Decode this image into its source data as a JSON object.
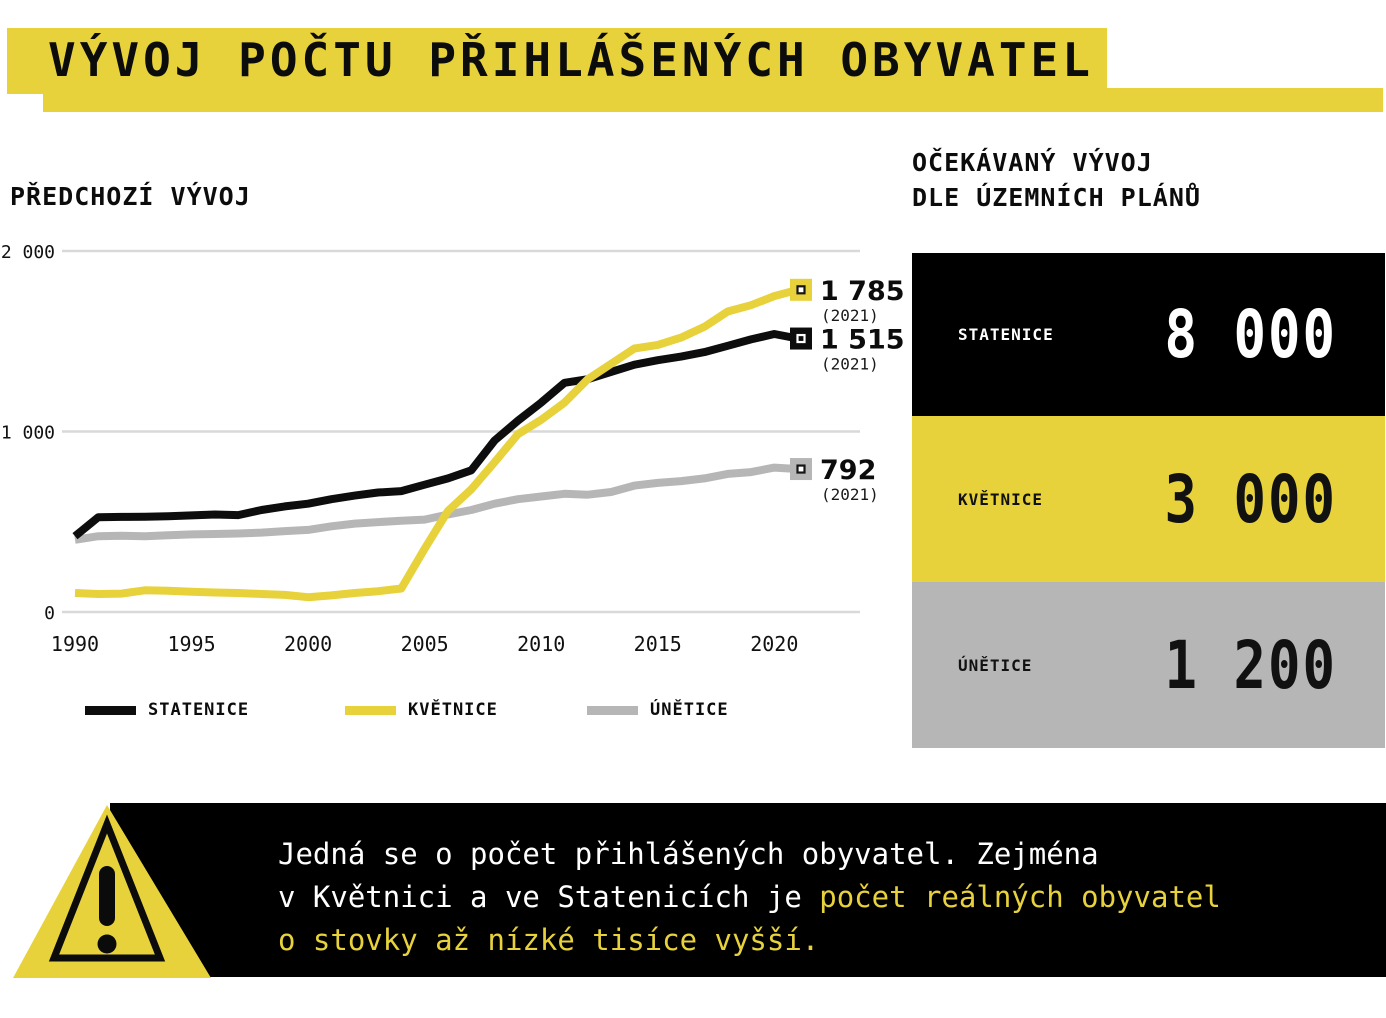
{
  "page_title": "VÝVOJ POČTU PŘIHLÁŠENÝCH OBYVATEL",
  "colors": {
    "accent_yellow": "#e7d23c",
    "black": "#000000",
    "gray": "#b6b6b6",
    "grid": "#d9d9d9",
    "white": "#ffffff"
  },
  "chart_data": {
    "type": "line",
    "title": "PŘEDCHOZÍ VÝVOJ",
    "x": [
      1990,
      1991,
      1992,
      1993,
      1994,
      1995,
      1996,
      1997,
      1998,
      1999,
      2000,
      2001,
      2002,
      2003,
      2004,
      2005,
      2006,
      2007,
      2008,
      2009,
      2010,
      2011,
      2012,
      2013,
      2014,
      2015,
      2016,
      2017,
      2018,
      2019,
      2020,
      2021
    ],
    "series": [
      {
        "name": "STATENICE",
        "color": "#0d0d0d",
        "values": [
          420,
          525,
          527,
          528,
          530,
          535,
          540,
          537,
          565,
          585,
          600,
          625,
          645,
          662,
          670,
          705,
          740,
          785,
          950,
          1060,
          1160,
          1270,
          1290,
          1330,
          1370,
          1395,
          1415,
          1440,
          1475,
          1510,
          1540,
          1515
        ],
        "end_label": "1 515",
        "end_caption": "(2021)"
      },
      {
        "name": "KVĚTNICE",
        "color": "#e7d23c",
        "values": [
          105,
          100,
          102,
          120,
          118,
          112,
          108,
          105,
          100,
          95,
          82,
          92,
          105,
          115,
          130,
          350,
          560,
          680,
          830,
          985,
          1065,
          1160,
          1290,
          1375,
          1460,
          1480,
          1520,
          1580,
          1665,
          1700,
          1750,
          1785
        ],
        "end_label": "1 785",
        "end_caption": "(2021)"
      },
      {
        "name": "ÚNĚTICE",
        "color": "#b6b6b6",
        "values": [
          400,
          420,
          422,
          420,
          425,
          430,
          432,
          435,
          440,
          448,
          455,
          475,
          490,
          498,
          505,
          512,
          540,
          565,
          600,
          625,
          640,
          655,
          650,
          665,
          700,
          715,
          725,
          740,
          765,
          775,
          800,
          792
        ],
        "end_label": "792",
        "end_caption": "(2021)"
      }
    ],
    "ylim": [
      0,
      2000
    ],
    "yticks": [
      {
        "value": 0,
        "label": "0"
      },
      {
        "value": 1000,
        "label": "1 000"
      },
      {
        "value": 2000,
        "label": "2 000"
      }
    ],
    "xticks": [
      1990,
      1995,
      2000,
      2005,
      2010,
      2015,
      2020
    ],
    "grid": true,
    "legend_position": "bottom"
  },
  "expected": {
    "title_line1": "OČEKÁVANÝ VÝVOJ",
    "title_line2": "DLE ÚZEMNÍCH PLÁNŮ",
    "rows": [
      {
        "name": "STATENICE",
        "value": "8 000",
        "bg": "#000000",
        "fg": "#ffffff"
      },
      {
        "name": "KVĚTNICE",
        "value": "3 000",
        "bg": "#e7d23c",
        "fg": "#111111"
      },
      {
        "name": "ÚNĚTICE",
        "value": "1 200",
        "bg": "#b6b6b6",
        "fg": "#111111"
      }
    ]
  },
  "warning": {
    "icon": "exclamation-triangle",
    "lines": [
      {
        "segments": [
          {
            "text": "Jedná se o počet přihlášených obyvatel. Zejména",
            "color": "#ffffff"
          }
        ]
      },
      {
        "segments": [
          {
            "text": "v Květnici a ve Statenicích je ",
            "color": "#ffffff"
          },
          {
            "text": "počet reálných obyvatel",
            "color": "#e7d23c"
          }
        ]
      },
      {
        "segments": [
          {
            "text": "o stovky až nízké tisíce vyšší.",
            "color": "#e7d23c"
          }
        ]
      }
    ]
  }
}
